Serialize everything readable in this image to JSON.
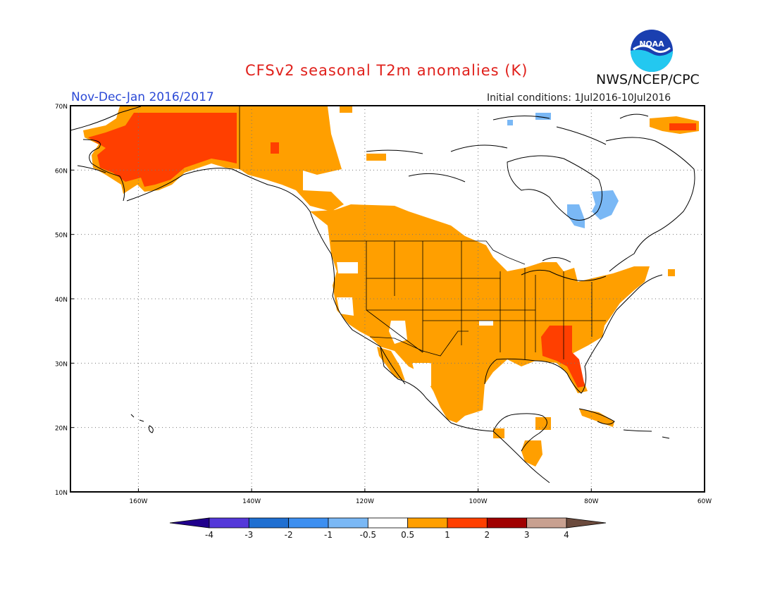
{
  "header": {
    "title": "CFSv2 seasonal T2m anomalies (K)",
    "org": "NWS/NCEP/CPC",
    "period": "Nov-Dec-Jan 2016/2017",
    "initial_conditions": "Initial conditions: 1Jul2016-10Jul2016",
    "logo_text": "NOAA"
  },
  "map": {
    "lon_range": [
      -172,
      -60
    ],
    "lat_range": [
      10,
      70
    ],
    "lat_labels": [
      "10N",
      "20N",
      "30N",
      "40N",
      "50N",
      "60N",
      "70N"
    ],
    "lon_labels": [
      "160W",
      "140W",
      "120W",
      "100W",
      "80W",
      "60W"
    ],
    "grid": "dotted",
    "colors": {
      "warm_0_5_1": "#ff9f00",
      "warm_1_2": "#ff3f00",
      "cool_m1_m0_5": "#7ab8f5"
    }
  },
  "colorbar": {
    "ticks": [
      "-4",
      "-3",
      "-2",
      "-1",
      "-0.5",
      "0.5",
      "1",
      "2",
      "3",
      "4"
    ],
    "colors": [
      "#20008c",
      "#5438d9",
      "#1f6fd1",
      "#3d8ff0",
      "#7ab8f5",
      "#ffffff",
      "#ff9f00",
      "#ff3f00",
      "#a00000",
      "#c8a090",
      "#6b4a3c"
    ]
  }
}
